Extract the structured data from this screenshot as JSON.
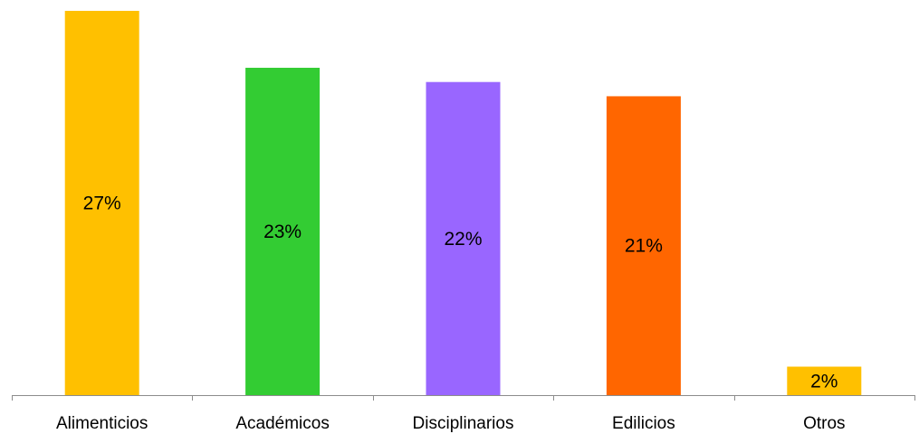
{
  "chart_data": {
    "type": "bar",
    "categories": [
      "Alimenticios",
      "Académicos",
      "Disciplinarios",
      "Edilicios",
      "Otros"
    ],
    "values": [
      27,
      23,
      22,
      21,
      2
    ],
    "data_labels": [
      "27%",
      "23%",
      "22%",
      "21%",
      "2%"
    ],
    "colors": [
      "#FFC000",
      "#33CC33",
      "#9966FF",
      "#FF6600",
      "#FFC000"
    ],
    "ylim": [
      0,
      27
    ],
    "grid": false,
    "legend": "none"
  }
}
